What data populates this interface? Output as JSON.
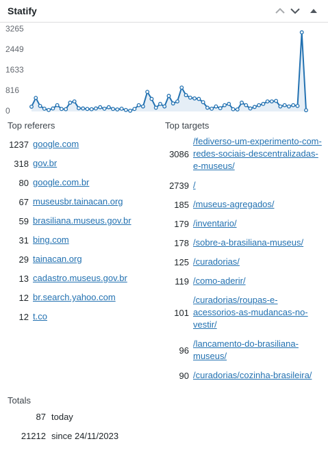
{
  "header": {
    "title": "Statify"
  },
  "chart_data": {
    "type": "line",
    "color": "#2271b1",
    "fill": "#e5eef6",
    "values": [
      190,
      540,
      220,
      110,
      60,
      120,
      250,
      100,
      90,
      350,
      400,
      130,
      120,
      100,
      90,
      120,
      170,
      110,
      170,
      100,
      80,
      110,
      60,
      30,
      100,
      250,
      200,
      780,
      500,
      150,
      300,
      200,
      620,
      320,
      400,
      950,
      650,
      550,
      520,
      500,
      370,
      150,
      110,
      200,
      130,
      250,
      300,
      90,
      80,
      350,
      250,
      120,
      180,
      250,
      300,
      400,
      400,
      420,
      200,
      250,
      200,
      250,
      220,
      3150,
      50
    ],
    "ylim": [
      0,
      3265
    ],
    "yticks": [
      0,
      816,
      1633,
      2449,
      3265
    ]
  },
  "referers": {
    "title": "Top referers",
    "rows": [
      {
        "count": 1237,
        "label": "google.com"
      },
      {
        "count": 318,
        "label": "gov.br"
      },
      {
        "count": 80,
        "label": "google.com.br"
      },
      {
        "count": 67,
        "label": "museusbr.tainacan.org"
      },
      {
        "count": 59,
        "label": "brasiliana.museus.gov.br"
      },
      {
        "count": 31,
        "label": "bing.com"
      },
      {
        "count": 29,
        "label": "tainacan.org"
      },
      {
        "count": 13,
        "label": "cadastro.museus.gov.br"
      },
      {
        "count": 12,
        "label": "br.search.yahoo.com"
      },
      {
        "count": 12,
        "label": "t.co"
      }
    ]
  },
  "targets": {
    "title": "Top targets",
    "rows": [
      {
        "count": 3086,
        "label": "/fediverso-um-experimento-com-redes-sociais-descentralizadas-e-museus/"
      },
      {
        "count": 2739,
        "label": "/"
      },
      {
        "count": 185,
        "label": "/museus-agregados/"
      },
      {
        "count": 179,
        "label": "/inventario/"
      },
      {
        "count": 178,
        "label": "/sobre-a-brasiliana-museus/"
      },
      {
        "count": 125,
        "label": "/curadorias/"
      },
      {
        "count": 119,
        "label": "/como-aderir/"
      },
      {
        "count": 101,
        "label": "/curadorias/roupas-e-acessorios-as-mudancas-no-vestir/"
      },
      {
        "count": 96,
        "label": "/lancamento-do-brasiliana-museus/"
      },
      {
        "count": 90,
        "label": "/curadorias/cozinha-brasileira/"
      }
    ]
  },
  "totals": {
    "title": "Totals",
    "rows": [
      {
        "count": 87,
        "label": "today"
      },
      {
        "count": 21212,
        "label": "since 24/11/2023"
      }
    ]
  }
}
